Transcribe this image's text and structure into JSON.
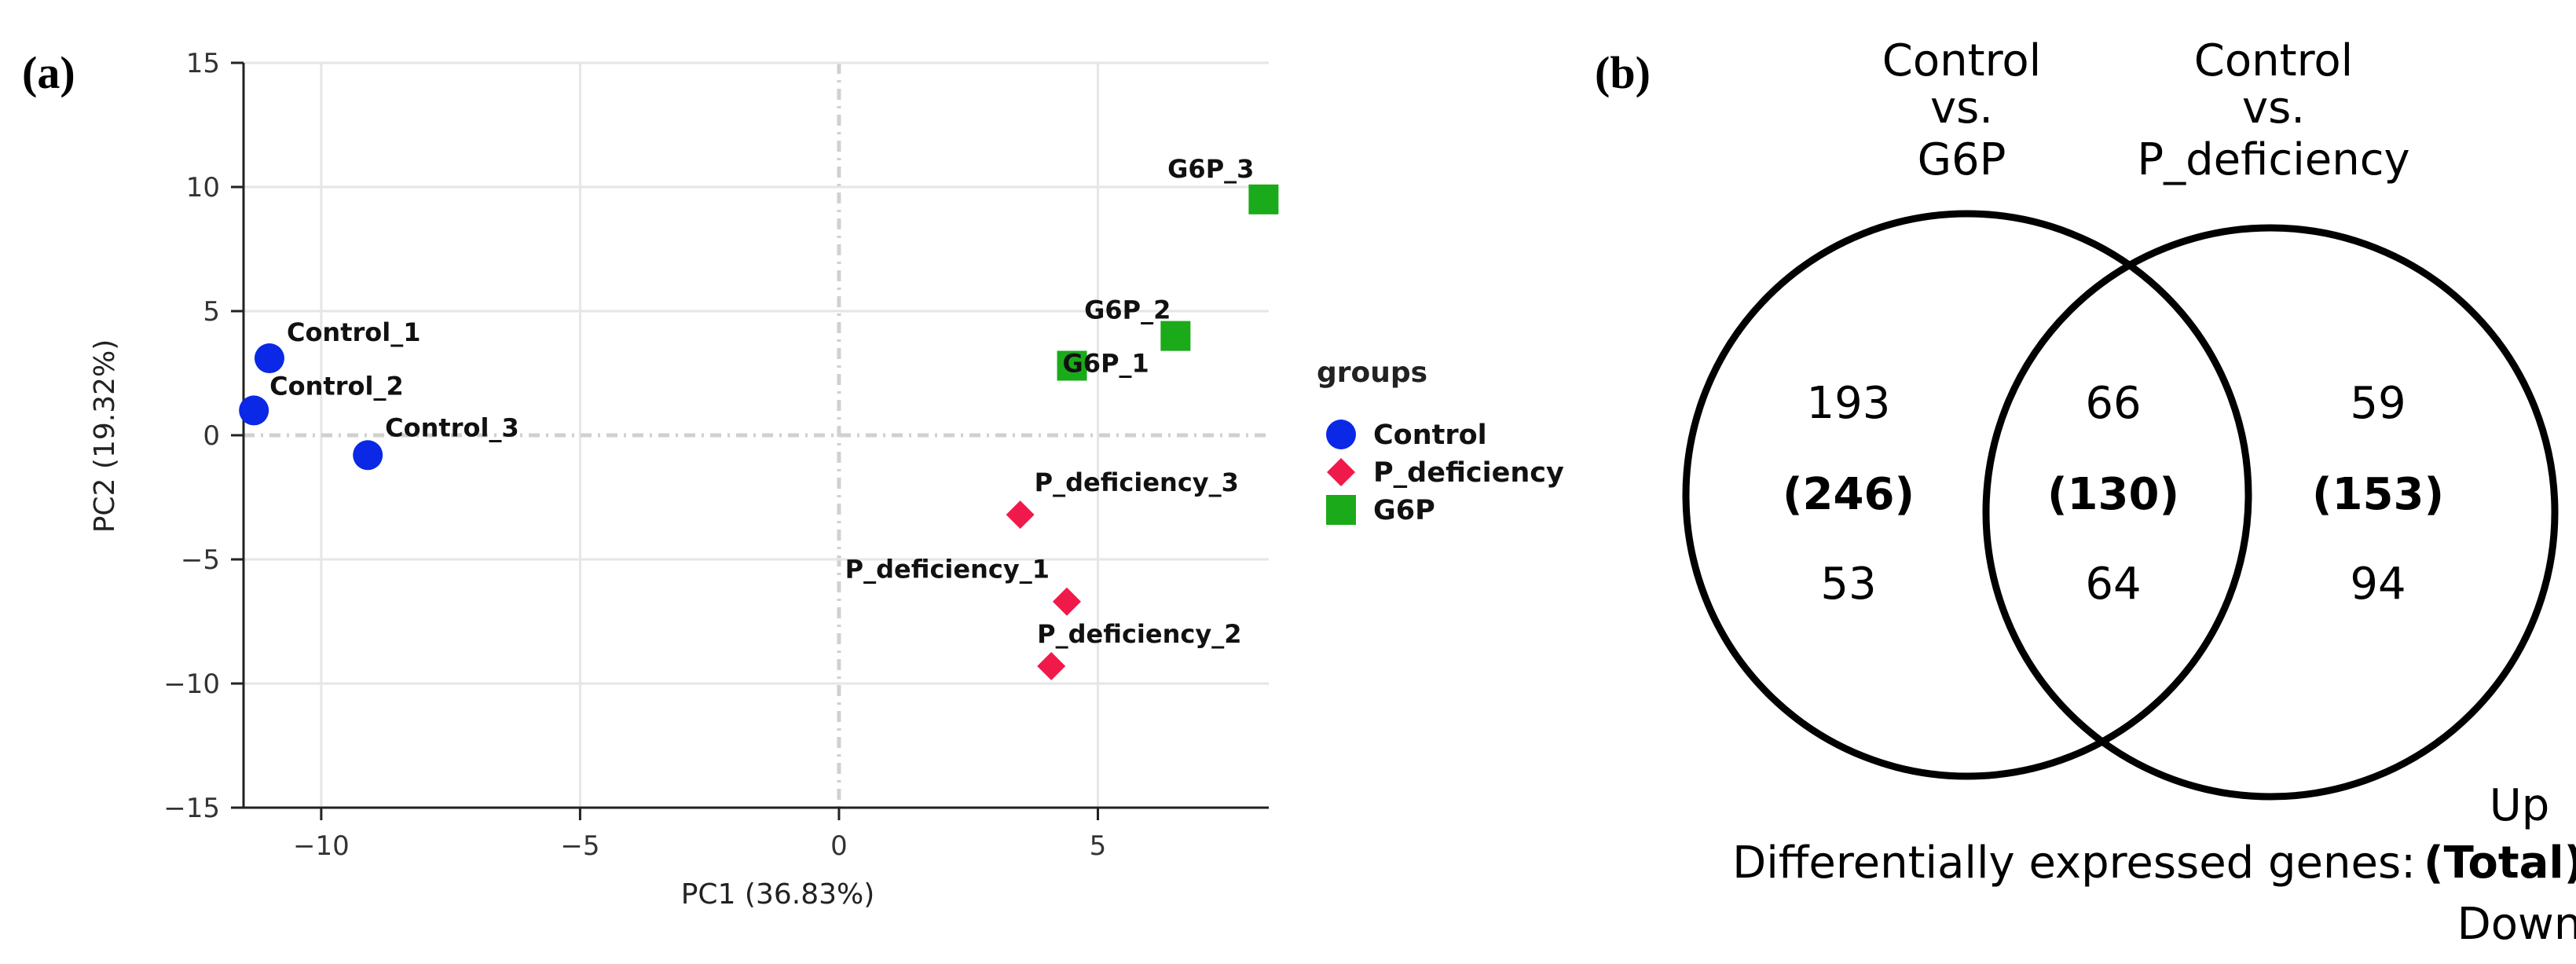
{
  "panel_a": {
    "label": "(a)",
    "chart_data": {
      "type": "scatter",
      "xlabel": "PC1 (36.83%)",
      "ylabel": "PC2 (19.32%)",
      "xlim": [
        -11.5,
        8.3
      ],
      "ylim": [
        -15,
        15
      ],
      "xticks": [
        -10,
        -5,
        0,
        5
      ],
      "yticks": [
        15,
        10,
        5,
        0,
        -5,
        -10,
        -15
      ],
      "grid": true,
      "legend_title": "groups",
      "legend_position": "right",
      "series": [
        {
          "name": "Control",
          "marker": "circle",
          "color": "#0a28e6",
          "points": [
            {
              "label": "Control_1",
              "x": -11.0,
              "y": 3.1
            },
            {
              "label": "Control_2",
              "x": -11.3,
              "y": 1.0
            },
            {
              "label": "Control_3",
              "x": -9.1,
              "y": -0.8
            }
          ]
        },
        {
          "name": "P_deficiency",
          "marker": "diamond",
          "color": "#f01a4a",
          "points": [
            {
              "label": "P_deficiency_3",
              "x": 3.5,
              "y": -3.2
            },
            {
              "label": "P_deficiency_1",
              "x": 4.4,
              "y": -6.7
            },
            {
              "label": "P_deficiency_2",
              "x": 4.1,
              "y": -9.3
            }
          ]
        },
        {
          "name": "G6P",
          "marker": "square",
          "color": "#1aaa1a",
          "points": [
            {
              "label": "G6P_3",
              "x": 8.2,
              "y": 9.5
            },
            {
              "label": "G6P_2",
              "x": 6.5,
              "y": 4.0
            },
            {
              "label": "G6P_1",
              "x": 4.5,
              "y": 2.8
            }
          ]
        }
      ]
    }
  },
  "panel_b": {
    "label": "(b)",
    "chart_data": {
      "type": "venn",
      "sets": [
        {
          "title_lines": [
            "Control",
            "vs.",
            "G6P"
          ]
        },
        {
          "title_lines": [
            "Control",
            "vs.",
            "P_deficiency"
          ]
        }
      ],
      "regions": [
        {
          "region": "left_only",
          "up": "193",
          "total": "(246)",
          "down": "53"
        },
        {
          "region": "intersection",
          "up": "66",
          "total": "(130)",
          "down": "64"
        },
        {
          "region": "right_only",
          "up": "59",
          "total": "(153)",
          "down": "94"
        }
      ]
    },
    "key": {
      "up": "Up",
      "prefix": "Differentially expressed genes:",
      "total": "(Total)",
      "down": "Down"
    }
  }
}
